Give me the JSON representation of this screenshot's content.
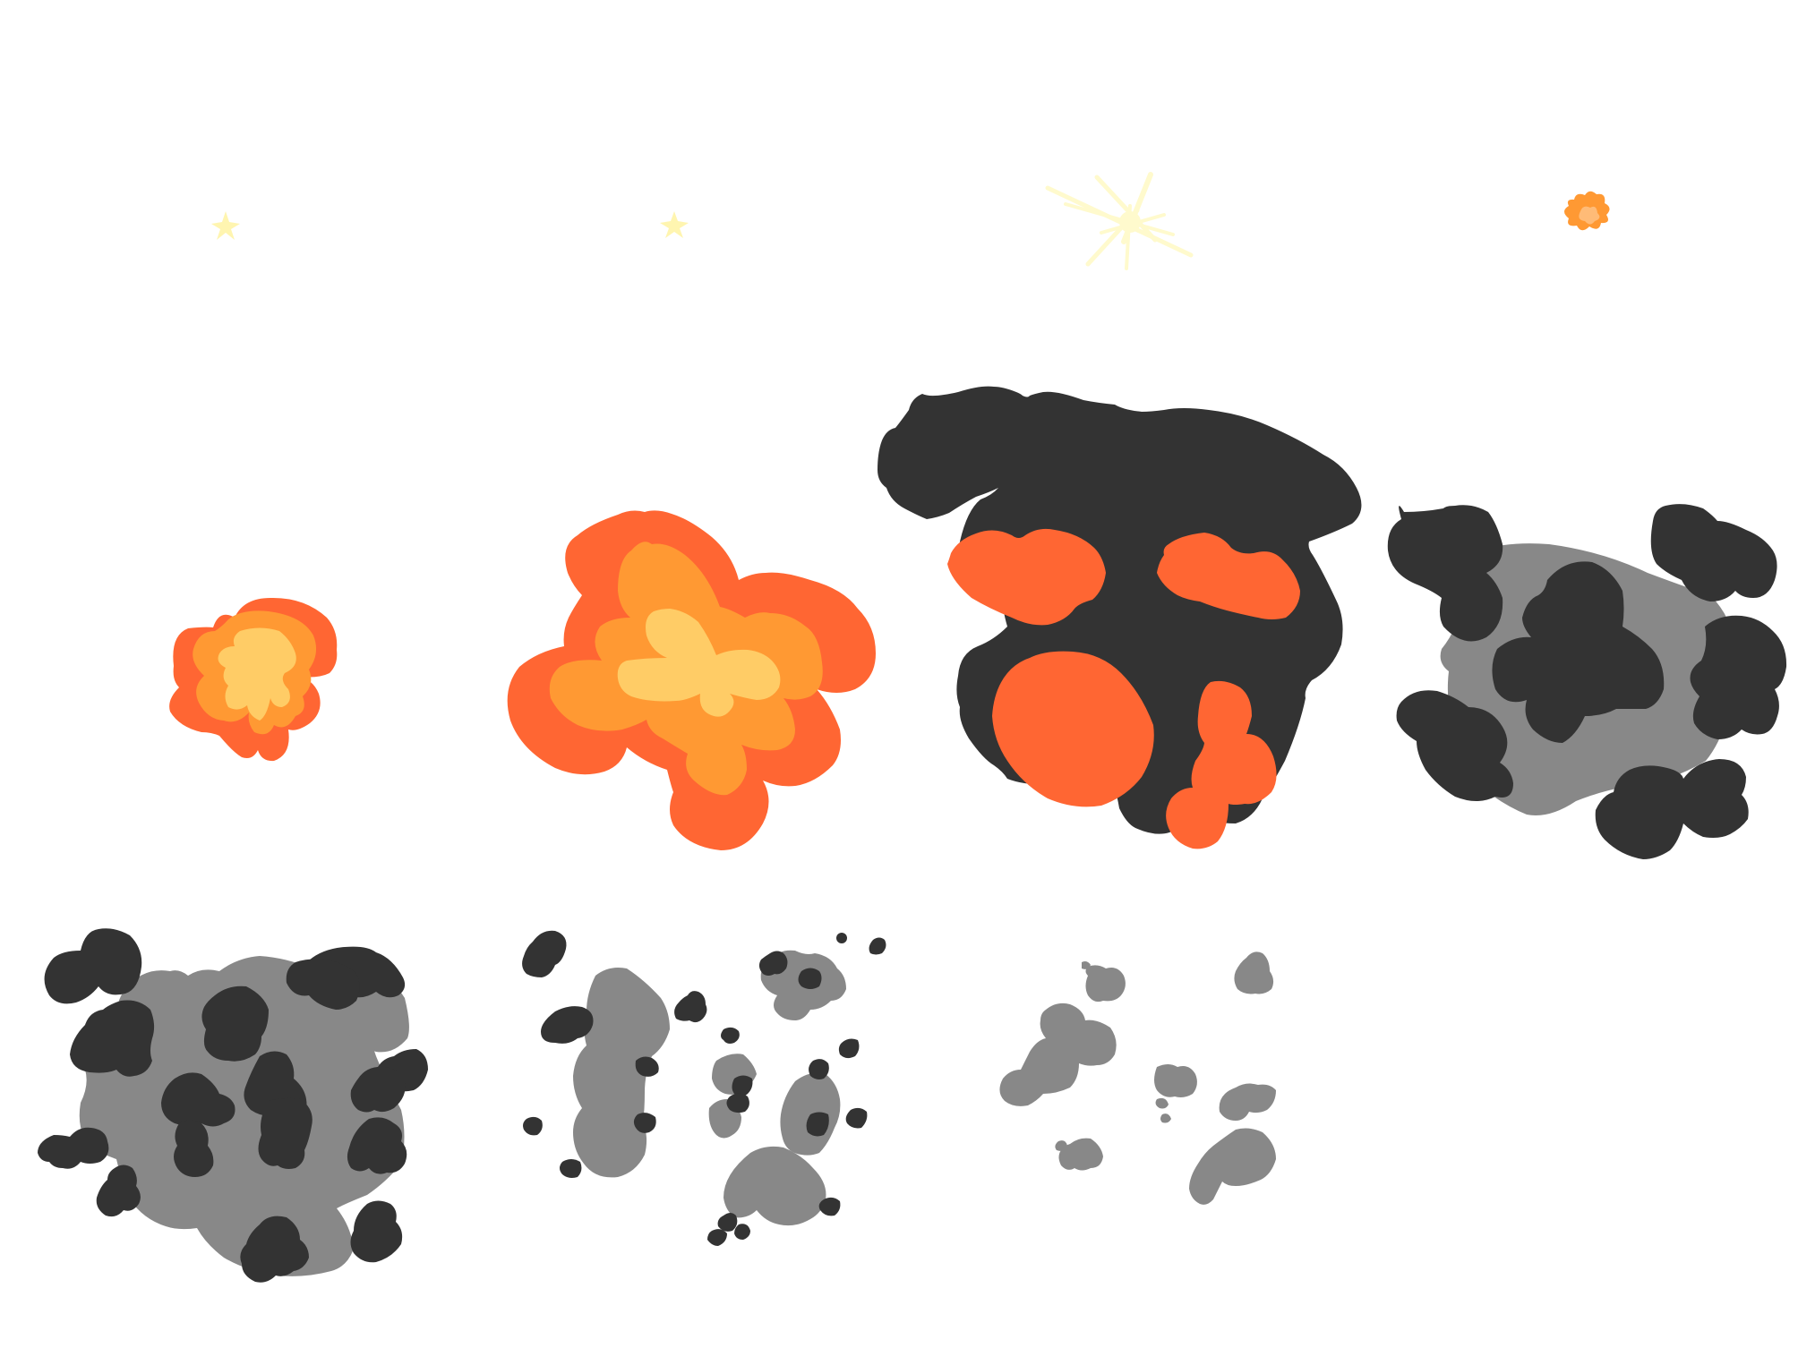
{
  "sprite_sheet": {
    "description_visible_text": "",
    "palette": {
      "background": "#ffffff",
      "fire_outer": "#ff6633",
      "fire_mid": "#ff9933",
      "fire_core": "#ffcc66",
      "fire_pale": "#ffbb77",
      "spark": "#fffacd",
      "smoke_dark": "#333333",
      "smoke_light": "#888888"
    },
    "frames": [
      {
        "id": "frame-1",
        "kind": "spark",
        "row": 1,
        "col": 1
      },
      {
        "id": "frame-2",
        "kind": "spark",
        "row": 1,
        "col": 2
      },
      {
        "id": "frame-3",
        "kind": "spark-burst",
        "row": 1,
        "col": 3
      },
      {
        "id": "frame-4",
        "kind": "tiny-fire",
        "row": 1,
        "col": 4
      },
      {
        "id": "frame-5",
        "kind": "small-fireball",
        "row": 2,
        "col": 1
      },
      {
        "id": "frame-6",
        "kind": "large-fireball",
        "row": 2,
        "col": 2
      },
      {
        "id": "frame-7",
        "kind": "fire-smoke",
        "row": 2,
        "col": 3
      },
      {
        "id": "frame-8",
        "kind": "dense-smoke",
        "row": 2,
        "col": 4
      },
      {
        "id": "frame-9",
        "kind": "smoke-cloud",
        "row": 3,
        "col": 1
      },
      {
        "id": "frame-10",
        "kind": "dispersing-smoke",
        "row": 3,
        "col": 2
      },
      {
        "id": "frame-11",
        "kind": "fading-smoke",
        "row": 3,
        "col": 3
      }
    ]
  }
}
